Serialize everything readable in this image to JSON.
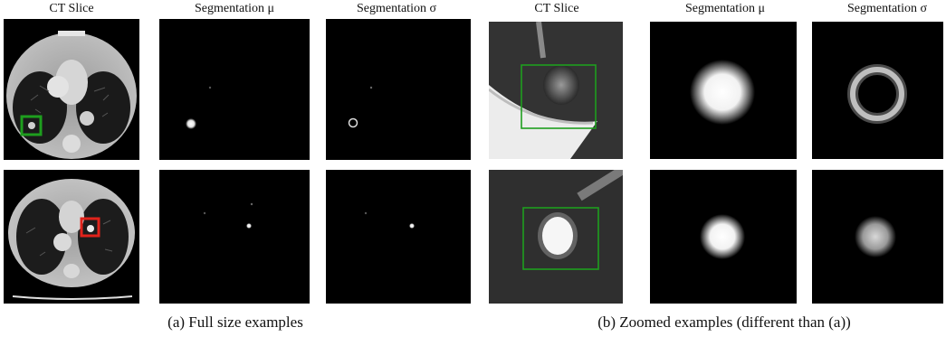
{
  "group_a": {
    "caption": "(a) Full size examples",
    "headers": [
      "CT Slice",
      "Segmentation μ",
      "Segmentation σ"
    ]
  },
  "group_b": {
    "caption": "(b) Zoomed examples (different than (a))",
    "headers": [
      "CT Slice",
      "Segmentation μ",
      "Segmentation σ"
    ]
  },
  "colors": {
    "box_green": "#1e9e1e",
    "box_red": "#e0231b",
    "panel_background": "#000000"
  }
}
